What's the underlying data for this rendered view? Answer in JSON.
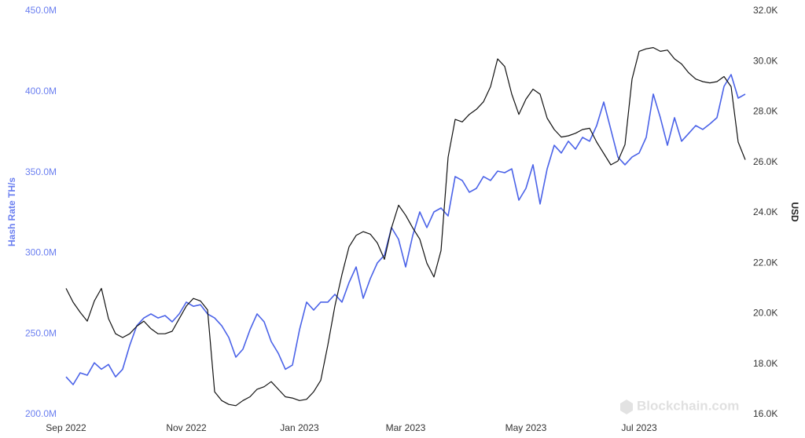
{
  "chart_data": {
    "type": "line",
    "y_label": "Hash Rate TH/s",
    "y2_label": "USD",
    "watermark": "Blockchain.com",
    "categories": [
      "Sep 2022",
      null,
      null,
      null,
      null,
      null,
      null,
      null,
      null,
      null,
      null,
      null,
      null,
      null,
      null,
      null,
      null,
      "Nov 2022",
      null,
      null,
      null,
      null,
      null,
      null,
      null,
      null,
      null,
      null,
      null,
      null,
      null,
      null,
      null,
      "Jan 2023",
      null,
      null,
      null,
      null,
      null,
      null,
      null,
      null,
      null,
      null,
      null,
      null,
      null,
      null,
      "Mar 2023",
      null,
      null,
      null,
      null,
      null,
      null,
      null,
      null,
      null,
      null,
      null,
      null,
      null,
      null,
      null,
      null,
      "May 2023",
      null,
      null,
      null,
      null,
      null,
      null,
      null,
      null,
      null,
      null,
      null,
      null,
      null,
      null,
      null,
      "Jul 2023",
      null,
      null,
      null,
      null,
      null,
      null,
      null,
      null,
      null,
      null,
      null,
      null,
      null,
      null,
      null
    ],
    "series": [
      {
        "color": "#4a62e8",
        "axis": "y",
        "values": [
          223.3,
          218.5,
          225.8,
          224.3,
          232,
          228,
          231,
          223.3,
          228,
          242.8,
          255,
          259.8,
          262.3,
          259.8,
          261.3,
          257.4,
          262.3,
          269.6,
          267,
          268,
          262.3,
          259.8,
          255,
          247.7,
          235.5,
          240.4,
          252.5,
          262.3,
          257.4,
          245.2,
          237.9,
          228,
          230.6,
          252.5,
          269.6,
          264.7,
          269.6,
          269.6,
          274.4,
          269.6,
          281.7,
          291.4,
          272,
          284.1,
          293.9,
          298.7,
          315.8,
          308.5,
          291.4,
          310.9,
          325.5,
          315.8,
          325.5,
          327.9,
          323,
          347.4,
          345,
          337.7,
          340.1,
          347.4,
          345,
          350.8,
          349.8,
          352.2,
          332.8,
          340.1,
          354.7,
          330.4,
          352.2,
          366.8,
          362,
          369.3,
          364.4,
          371.7,
          369.3,
          379,
          393.6,
          376.6,
          359.5,
          354.7,
          359.5,
          362,
          371.7,
          398.5,
          383.9,
          366.8,
          383.9,
          369.3,
          374.1,
          379,
          376.6,
          380,
          383.9,
          403.3,
          410.6,
          396,
          398.5
        ]
      },
      {
        "color": "#111111",
        "axis": "y2",
        "values": [
          21.0,
          20.45,
          20.05,
          19.7,
          20.5,
          21.0,
          19.8,
          19.2,
          19.05,
          19.2,
          19.5,
          19.7,
          19.4,
          19.2,
          19.2,
          19.3,
          19.8,
          20.3,
          20.6,
          20.5,
          20.15,
          16.9,
          16.55,
          16.4,
          16.35,
          16.55,
          16.7,
          17.0,
          17.1,
          17.3,
          17.0,
          16.7,
          16.65,
          16.55,
          16.6,
          16.9,
          17.35,
          18.75,
          20.3,
          21.55,
          22.65,
          23.1,
          23.25,
          23.15,
          22.8,
          22.15,
          23.4,
          24.3,
          23.9,
          23.4,
          22.95,
          22.0,
          21.45,
          22.5,
          26.2,
          27.7,
          27.6,
          27.9,
          28.1,
          28.4,
          29.0,
          30.1,
          29.8,
          28.7,
          27.9,
          28.5,
          28.9,
          28.7,
          27.75,
          27.3,
          27.0,
          27.05,
          27.15,
          27.3,
          27.35,
          26.8,
          26.35,
          25.9,
          26.05,
          26.7,
          29.3,
          30.4,
          30.5,
          30.55,
          30.4,
          30.45,
          30.1,
          29.9,
          29.55,
          29.3,
          29.2,
          29.15,
          29.2,
          29.4,
          29.0,
          26.8,
          26.1
        ]
      }
    ],
    "ylim": [
      200,
      450
    ],
    "yticks": [
      {
        "value": 200,
        "label": "200.0M"
      },
      {
        "value": 250,
        "label": "250.0M"
      },
      {
        "value": 300,
        "label": "300.0M"
      },
      {
        "value": 350,
        "label": "350.0M"
      },
      {
        "value": 400,
        "label": "400.0M"
      },
      {
        "value": 450,
        "label": "450.0M"
      }
    ],
    "y2lim": [
      16,
      32
    ],
    "y2ticks": [
      {
        "value": 16,
        "label": "16.0K"
      },
      {
        "value": 18,
        "label": "18.0K"
      },
      {
        "value": 20,
        "label": "20.0K"
      },
      {
        "value": 22,
        "label": "22.0K"
      },
      {
        "value": 24,
        "label": "24.0K"
      },
      {
        "value": 26,
        "label": "26.0K"
      },
      {
        "value": 28,
        "label": "28.0K"
      },
      {
        "value": 30,
        "label": "30.0K"
      },
      {
        "value": 32,
        "label": "32.0K"
      }
    ],
    "y_color": "#6b7ff0",
    "grid": false
  }
}
